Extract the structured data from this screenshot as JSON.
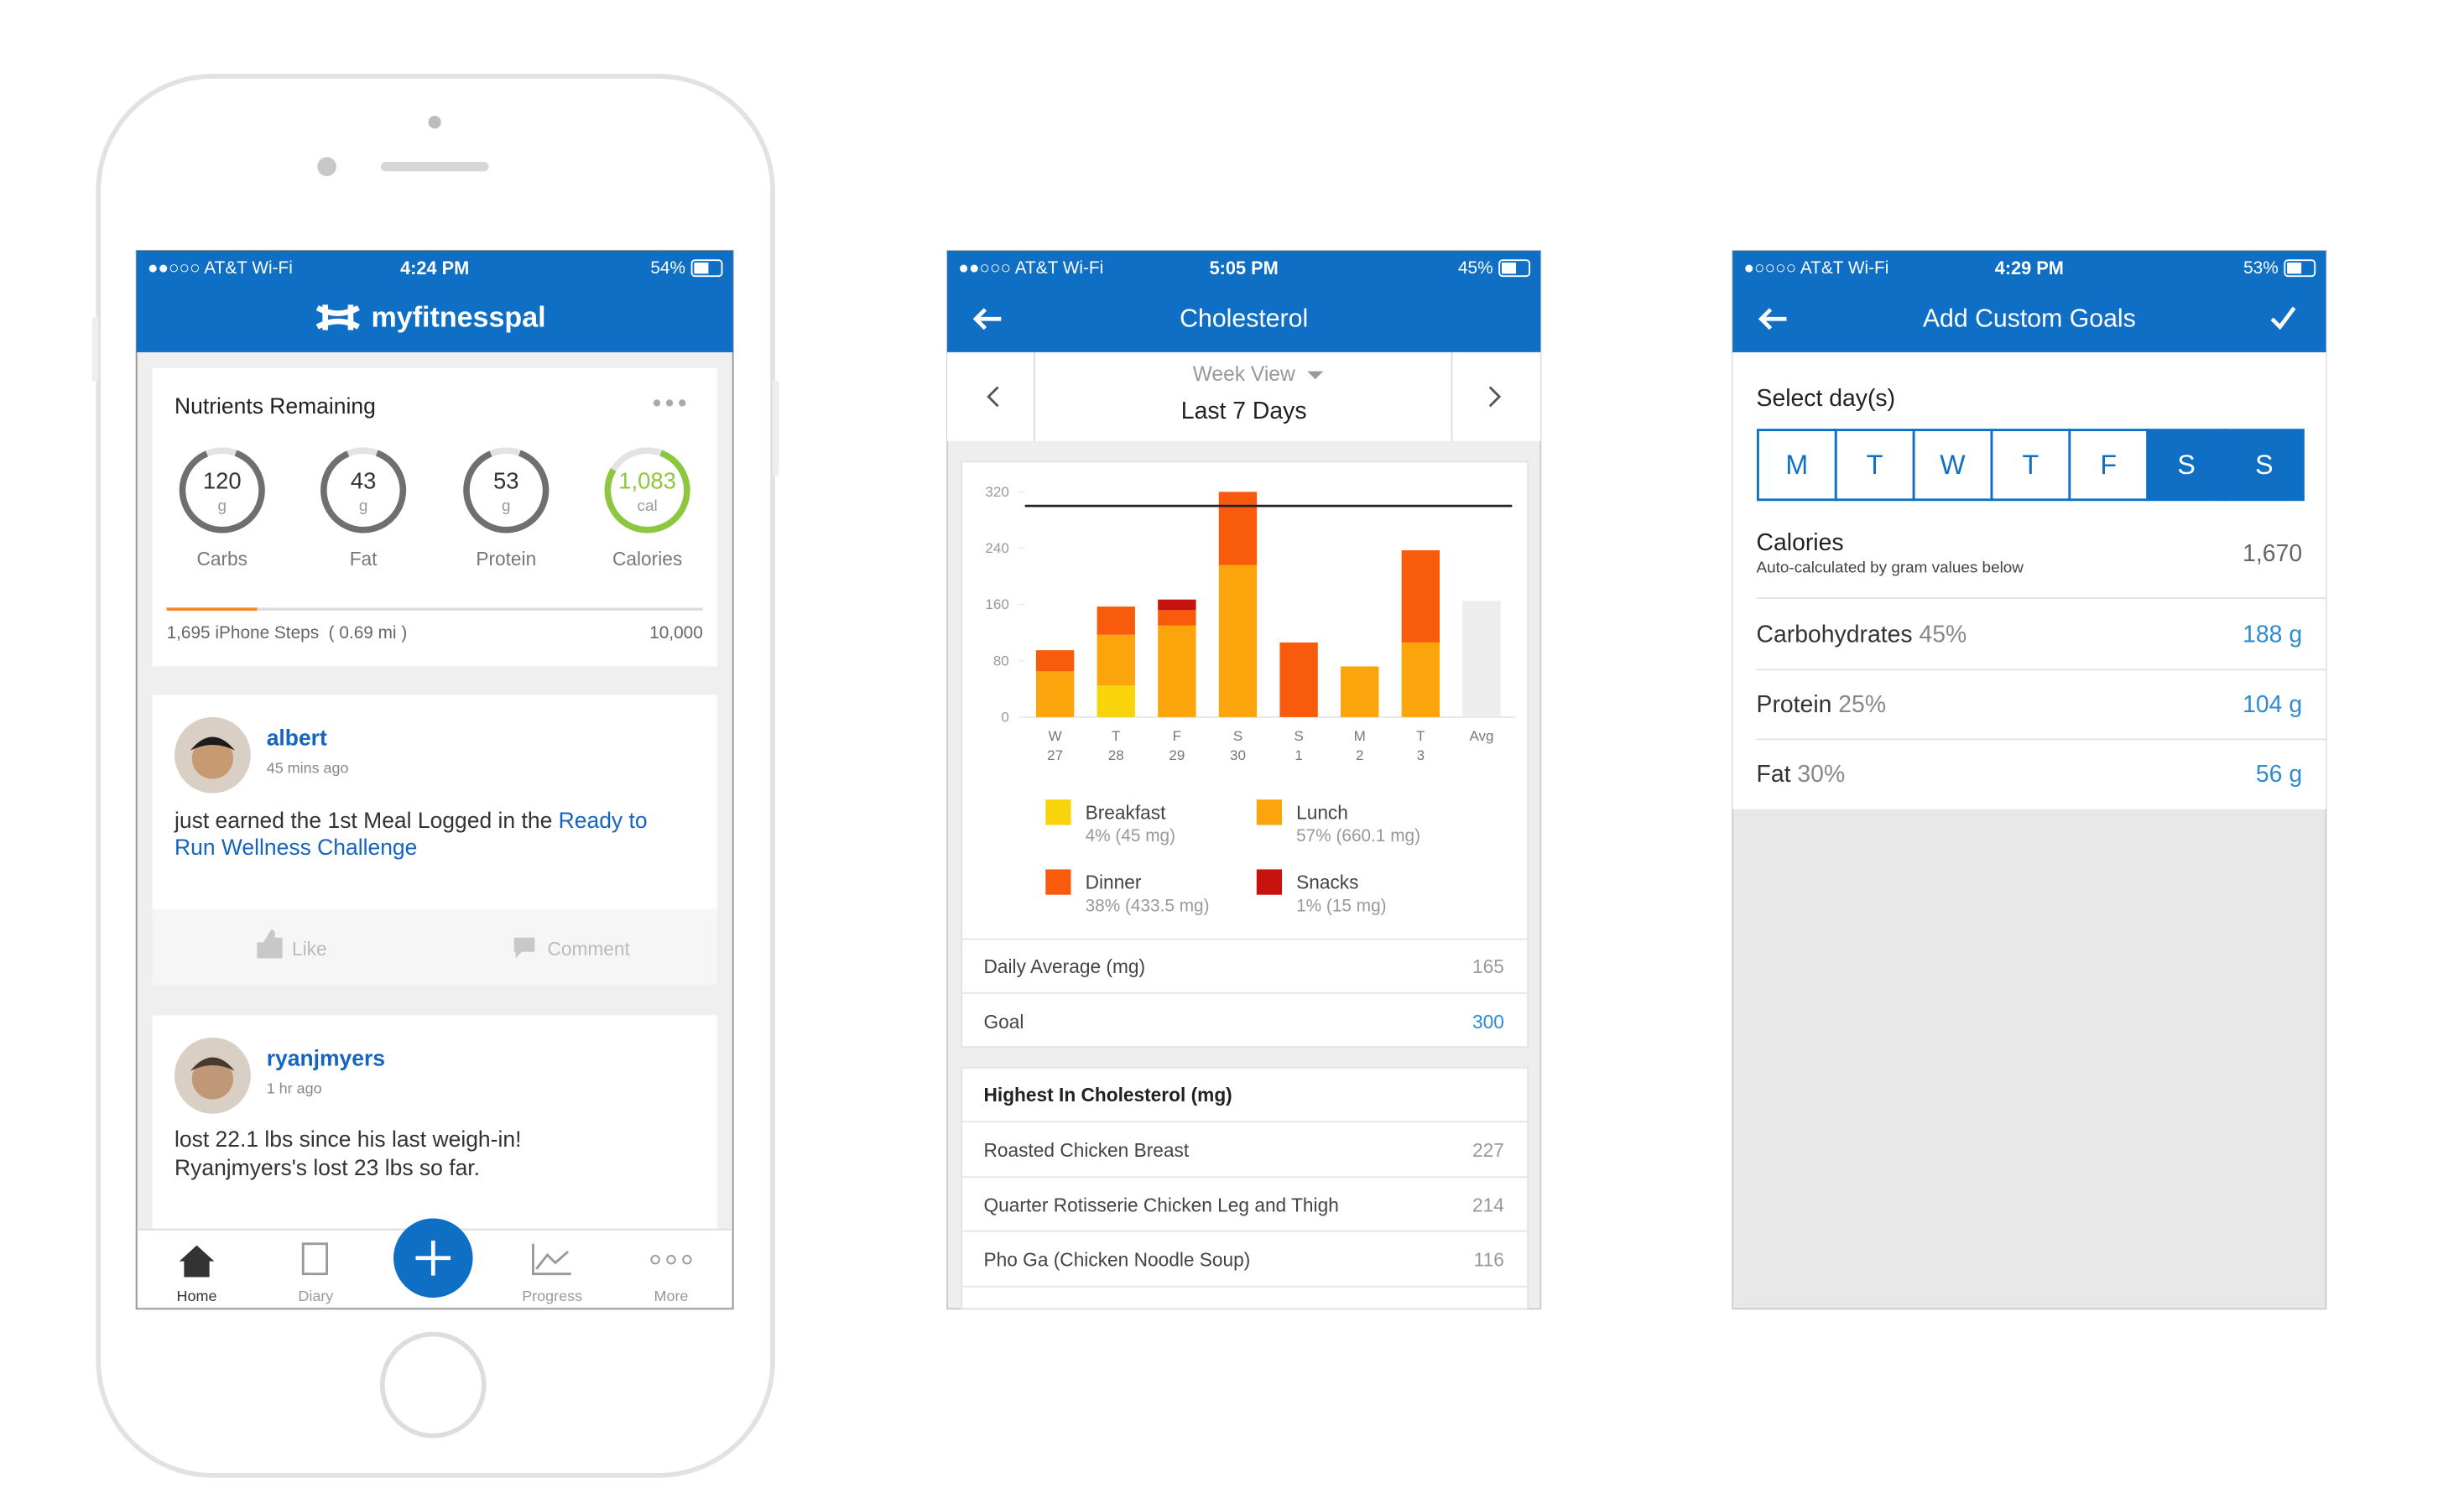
{
  "screens": {
    "home": {
      "status": {
        "carrier": "●●○○○ AT&T Wi-Fi",
        "time": "4:24 PM",
        "battery": "54%"
      },
      "brand": "myfitnesspal",
      "nutrients": {
        "title": "Nutrients Remaining",
        "items": [
          {
            "value": "120",
            "unit": "g",
            "label": "Carbs"
          },
          {
            "value": "43",
            "unit": "g",
            "label": "Fat"
          },
          {
            "value": "53",
            "unit": "g",
            "label": "Protein"
          },
          {
            "value": "1,083",
            "unit": "cal",
            "label": "Calories"
          }
        ]
      },
      "steps": {
        "label": "1,695 iPhone Steps  ( 0.69 mi )",
        "goal": "10,000"
      },
      "feed": [
        {
          "user": "albert",
          "time": "45 mins ago",
          "text": "just earned the 1st Meal Logged in the ",
          "link": [
            "Ready to",
            "Run Wellness Challenge"
          ],
          "actions": [
            "Like",
            "Comment"
          ]
        },
        {
          "user": "ryanjmyers",
          "time": "1 hr ago",
          "lines": [
            "lost 22.1 lbs since his last weigh-in!",
            "Ryanjmyers's lost 23 lbs so far."
          ]
        }
      ],
      "tabs": [
        "Home",
        "Diary",
        "Progress",
        "More"
      ]
    },
    "cholesterol": {
      "status": {
        "carrier": "●●○○○ AT&T Wi-Fi",
        "time": "5:05 PM",
        "battery": "45%"
      },
      "title": "Cholesterol",
      "view": "Week View",
      "period": "Last 7 Days",
      "highest": {
        "title": "Highest In Cholesterol (mg)",
        "rows": [
          {
            "name": "Roasted Chicken Breast",
            "value": 227
          },
          {
            "name": "Quarter Rotisserie Chicken Leg and Thigh",
            "value": 214
          },
          {
            "name": "Pho Ga (Chicken Noodle Soup)",
            "value": 116
          }
        ]
      }
    },
    "goals": {
      "status": {
        "carrier": "●○○○○ AT&T Wi-Fi",
        "time": "4:29 PM",
        "battery": "53%"
      },
      "title": "Add Custom Goals",
      "select_label": "Select day(s)",
      "days": [
        "M",
        "T",
        "W",
        "T",
        "F",
        "S",
        "S"
      ],
      "selected": [
        false,
        false,
        false,
        false,
        false,
        true,
        true
      ],
      "calories": {
        "label": "Calories",
        "note": "Auto-calculated by gram values below",
        "value": "1,670"
      },
      "rows": [
        {
          "label": "Carbohydrates",
          "pct": "45%",
          "value": "188 g"
        },
        {
          "label": "Protein",
          "pct": "25%",
          "value": "104 g"
        },
        {
          "label": "Fat",
          "pct": "30%",
          "value": "56 g"
        }
      ]
    }
  },
  "chart_data": {
    "type": "stacked-bar",
    "categories": [
      "W",
      "T",
      "F",
      "S",
      "S",
      "M",
      "T",
      "Avg"
    ],
    "dates": [
      "27",
      "28",
      "29",
      "30",
      "1",
      "2",
      "3",
      null
    ],
    "series": [
      {
        "name": "Breakfast",
        "detail": "4% (45 mg)",
        "color": "#f9d40a",
        "values": [
          null,
          45,
          null,
          null,
          null,
          null,
          null,
          null
        ]
      },
      {
        "name": "Lunch",
        "detail": "57% (660.1 mg)",
        "color": "#fca40c",
        "values": [
          65,
          72,
          130,
          216,
          null,
          72,
          106,
          null
        ]
      },
      {
        "name": "Dinner",
        "detail": "38% (433.5 mg)",
        "color": "#f95b0d",
        "values": [
          30,
          40,
          22,
          104,
          106,
          null,
          131,
          null
        ]
      },
      {
        "name": "Snacks",
        "detail": "1% (15 mg)",
        "color": "#c8120d",
        "values": [
          null,
          null,
          15,
          null,
          null,
          null,
          null,
          null
        ]
      }
    ],
    "ylim": [
      0,
      320
    ],
    "yticks": [
      0,
      80,
      160,
      240,
      320
    ],
    "daily_average": {
      "label": "Daily Average (mg)",
      "value": 165
    },
    "goal": {
      "label": "Goal",
      "value": 300
    }
  }
}
